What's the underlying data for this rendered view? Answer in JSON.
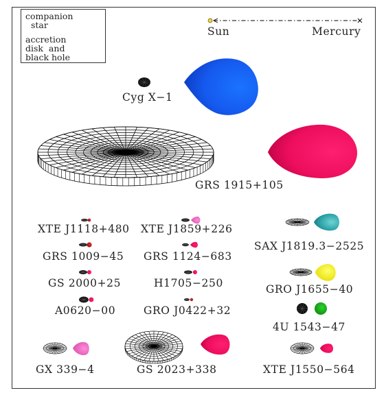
{
  "legend": {
    "companion_label": "companion\n  star",
    "disk_label": "accretion\ndisk  and\nblack hole"
  },
  "scale": {
    "sun": "Sun",
    "mercury": "Mercury"
  },
  "systems": {
    "cyg": "Cyg X−1",
    "grs1915": "GRS 1915+105",
    "xte1118": "XTE J1118+480",
    "xte1859": "XTE J1859+226",
    "sax1819": "SAX J1819.3−2525",
    "grs1009": "GRS 1009−45",
    "grs1124": "GRS 1124−683",
    "gs2000": "GS 2000+25",
    "h1705": "H1705−250",
    "gro1655": "GRO J1655−40",
    "a0620": "A0620−00",
    "gro0422": "GRO J0422+32",
    "u1543": "4U 1543−47",
    "gx339": "GX 339−4",
    "gs2023": "GS 2023+338",
    "xte1550": "XTE J1550−564"
  },
  "colors": {
    "blue": "#1a5ef0",
    "magenta": "#f0106a",
    "pink": "#f070c8",
    "red_dark": "#b01818",
    "teal": "#2aa8ac",
    "yellow": "#f6f61e",
    "green": "#10a010",
    "sun_yellow": "#e8d020"
  }
}
